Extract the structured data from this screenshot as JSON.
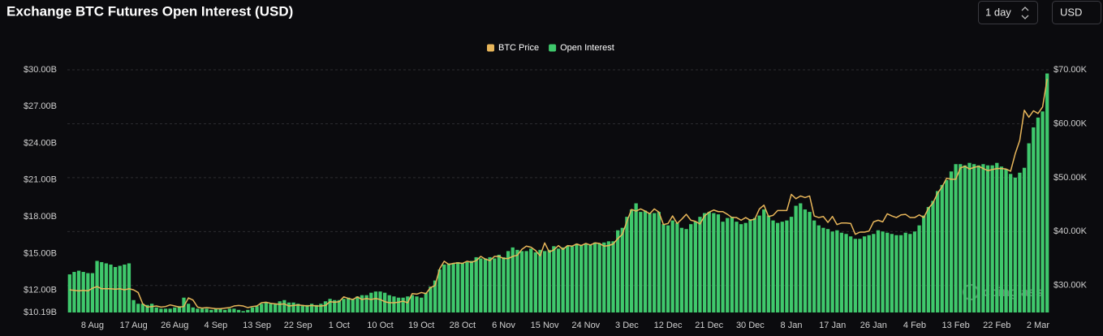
{
  "chart_data": {
    "type": "bar",
    "title": "Exchange BTC Futures Open Interest (USD)",
    "controls": {
      "interval": "1 day",
      "currency": "USD"
    },
    "watermark": "coinglass",
    "grid": true,
    "legend": "top",
    "categories": [
      null,
      null,
      null,
      null,
      null,
      "8 Aug",
      null,
      null,
      null,
      null,
      null,
      null,
      null,
      null,
      "17 Aug",
      null,
      null,
      null,
      null,
      null,
      null,
      null,
      null,
      "26 Aug",
      null,
      null,
      null,
      null,
      null,
      null,
      null,
      null,
      "4 Sep",
      null,
      null,
      null,
      null,
      null,
      null,
      null,
      null,
      "13 Sep",
      null,
      null,
      null,
      null,
      null,
      null,
      null,
      null,
      "22 Sep",
      null,
      null,
      null,
      null,
      null,
      null,
      null,
      null,
      "1 Oct",
      null,
      null,
      null,
      null,
      null,
      null,
      null,
      null,
      "10 Oct",
      null,
      null,
      null,
      null,
      null,
      null,
      null,
      null,
      "19 Oct",
      null,
      null,
      null,
      null,
      null,
      null,
      null,
      null,
      "28 Oct",
      null,
      null,
      null,
      null,
      null,
      null,
      null,
      null,
      "6 Nov",
      null,
      null,
      null,
      null,
      null,
      null,
      null,
      null,
      "15 Nov",
      null,
      null,
      null,
      null,
      null,
      null,
      null,
      null,
      "24 Nov",
      null,
      null,
      null,
      null,
      null,
      null,
      null,
      null,
      "3 Dec",
      null,
      null,
      null,
      null,
      null,
      null,
      null,
      null,
      "12 Dec",
      null,
      null,
      null,
      null,
      null,
      null,
      null,
      null,
      "21 Dec",
      null,
      null,
      null,
      null,
      null,
      null,
      null,
      null,
      "30 Dec",
      null,
      null,
      null,
      null,
      null,
      null,
      null,
      null,
      "8 Jan",
      null,
      null,
      null,
      null,
      null,
      null,
      null,
      null,
      "17 Jan",
      null,
      null,
      null,
      null,
      null,
      null,
      null,
      null,
      "26 Jan",
      null,
      null,
      null,
      null,
      null,
      null,
      null,
      null,
      "4 Feb",
      null,
      null,
      null,
      null,
      null,
      null,
      null,
      null,
      "13 Feb",
      null,
      null,
      null,
      null,
      null,
      null,
      null,
      null,
      "22 Feb",
      null,
      null,
      null,
      null,
      null,
      null,
      null,
      null,
      "2 Mar",
      null,
      null
    ],
    "series": [
      {
        "name": "BTC Price",
        "color": "#e8b65a",
        "type": "line",
        "axis": "y2",
        "values": [
          29.2,
          29.1,
          29.0,
          29.1,
          29.0,
          29.5,
          29.8,
          29.4,
          29.4,
          29.4,
          29.3,
          29.4,
          29.2,
          29.4,
          29.2,
          28.7,
          26.6,
          26.0,
          26.1,
          26.2,
          26.0,
          26.1,
          26.4,
          26.2,
          26.0,
          26.1,
          27.7,
          27.3,
          26.0,
          25.8,
          25.9,
          25.8,
          25.7,
          25.7,
          25.8,
          25.9,
          26.2,
          26.3,
          26.2,
          25.9,
          26.1,
          26.2,
          26.8,
          26.9,
          26.7,
          26.6,
          26.5,
          26.6,
          26.2,
          26.3,
          26.4,
          26.3,
          26.2,
          26.3,
          26.2,
          26.2,
          26.3,
          27.0,
          26.9,
          27.0,
          27.9,
          27.6,
          27.4,
          27.9,
          27.4,
          27.6,
          27.4,
          27.6,
          27.4,
          27.0,
          26.8,
          26.8,
          26.9,
          27.1,
          26.8,
          28.5,
          28.4,
          28.7,
          28.5,
          29.6,
          30.0,
          33.1,
          34.5,
          33.9,
          34.1,
          34.2,
          34.1,
          34.5,
          34.3,
          34.6,
          35.4,
          34.9,
          34.6,
          35.4,
          35.4,
          35.0,
          35.0,
          35.4,
          35.6,
          36.7,
          37.3,
          37.1,
          36.5,
          35.5,
          37.9,
          36.2,
          36.6,
          37.4,
          36.7,
          37.4,
          37.3,
          37.7,
          37.4,
          37.8,
          37.5,
          37.9,
          37.8,
          37.3,
          37.4,
          37.7,
          38.7,
          39.5,
          41.9,
          44.1,
          43.8,
          44.2,
          43.8,
          43.3,
          44.2,
          43.6,
          41.3,
          41.5,
          42.9,
          41.5,
          42.3,
          43.2,
          42.1,
          41.9,
          41.4,
          42.9,
          43.6,
          44.0,
          43.7,
          43.7,
          43.2,
          42.6,
          42.6,
          42.1,
          42.6,
          42.1,
          42.3,
          44.2,
          44.9,
          42.8,
          43.0,
          43.9,
          43.9,
          43.9,
          46.9,
          46.1,
          46.6,
          46.3,
          46.6,
          42.9,
          42.6,
          42.8,
          41.7,
          42.8,
          41.3,
          41.6,
          41.6,
          41.5,
          39.5,
          39.9,
          39.9,
          40.1,
          41.8,
          42.1,
          41.8,
          43.3,
          42.9,
          42.6,
          43.1,
          43.2,
          42.6,
          42.6,
          43.1,
          42.6,
          44.3,
          45.3,
          47.1,
          48.3,
          49.9,
          49.7,
          49.7,
          51.8,
          52.1,
          51.6,
          51.9,
          52.1,
          51.7,
          51.3,
          51.5,
          51.7,
          51.7,
          51.6,
          51.2,
          54.4,
          56.9,
          62.5,
          61.2,
          62.4,
          61.9,
          63.1,
          68.3
        ]
      },
      {
        "name": "Open Interest",
        "color": "#3fc86c",
        "type": "bar",
        "values": [
          13.3,
          13.5,
          13.6,
          13.5,
          13.4,
          13.4,
          14.4,
          14.3,
          14.2,
          14.1,
          13.9,
          14.0,
          14.1,
          14.2,
          11.2,
          10.9,
          10.9,
          10.8,
          10.9,
          10.6,
          10.5,
          10.5,
          10.5,
          10.6,
          10.7,
          11.4,
          10.9,
          10.6,
          10.5,
          10.5,
          10.5,
          10.4,
          10.5,
          10.5,
          10.4,
          10.5,
          10.5,
          10.4,
          10.3,
          10.4,
          10.6,
          10.7,
          10.9,
          11.0,
          10.9,
          10.9,
          11.1,
          11.2,
          11.0,
          11.0,
          10.9,
          10.8,
          10.8,
          10.9,
          10.8,
          10.9,
          11.1,
          11.3,
          11.2,
          11.2,
          11.3,
          11.4,
          11.3,
          11.5,
          11.6,
          11.6,
          11.8,
          11.9,
          11.9,
          11.8,
          11.6,
          11.5,
          11.4,
          11.4,
          11.5,
          11.6,
          11.5,
          11.4,
          11.8,
          12.3,
          12.8,
          13.7,
          14.1,
          14.2,
          14.2,
          14.3,
          14.2,
          14.3,
          14.4,
          14.7,
          14.6,
          14.6,
          14.7,
          14.6,
          14.9,
          14.7,
          15.2,
          15.5,
          15.3,
          15.2,
          15.2,
          15.4,
          15.1,
          15.3,
          15.2,
          15.3,
          15.6,
          15.4,
          15.5,
          15.6,
          15.6,
          15.8,
          15.7,
          15.8,
          15.7,
          15.9,
          15.8,
          15.9,
          16.0,
          16.0,
          16.9,
          17.1,
          18.0,
          18.6,
          19.1,
          18.4,
          18.5,
          18.3,
          18.3,
          18.4,
          17.4,
          17.3,
          17.7,
          17.5,
          17.1,
          17.0,
          17.4,
          17.6,
          18.0,
          18.3,
          18.4,
          18.3,
          18.2,
          17.6,
          17.9,
          18.0,
          17.6,
          17.4,
          17.5,
          17.8,
          17.9,
          18.1,
          18.6,
          18.1,
          17.7,
          17.5,
          17.6,
          17.7,
          18.0,
          18.9,
          19.1,
          18.6,
          18.4,
          17.7,
          17.3,
          17.1,
          17.0,
          16.8,
          16.9,
          16.7,
          16.6,
          16.4,
          16.2,
          16.2,
          16.4,
          16.5,
          16.6,
          16.9,
          16.8,
          16.7,
          16.6,
          16.5,
          16.5,
          16.7,
          16.6,
          16.8,
          17.3,
          18.1,
          18.8,
          19.3,
          20.1,
          20.6,
          21.0,
          21.7,
          22.3,
          22.3,
          22.2,
          22.4,
          22.3,
          22.2,
          22.3,
          22.2,
          22.2,
          22.4,
          22.1,
          21.9,
          21.5,
          21.2,
          21.6,
          22.0,
          24.0,
          25.3,
          26.1,
          26.6,
          29.7
        ]
      }
    ],
    "ylim": [
      10.19,
      30
    ],
    "yticks": [
      {
        "value": 10.19,
        "label": "$10.19B"
      },
      {
        "value": 12,
        "label": "$12.00B"
      },
      {
        "value": 15,
        "label": "$15.00B"
      },
      {
        "value": 18,
        "label": "$18.00B"
      },
      {
        "value": 21,
        "label": "$21.00B"
      },
      {
        "value": 24,
        "label": "$24.00B"
      },
      {
        "value": 27,
        "label": "$27.00B"
      },
      {
        "value": 30,
        "label": "$30.00B"
      }
    ],
    "y2lim": [
      25,
      70
    ],
    "y2ticks": [
      {
        "value": 30,
        "label": "$30.00K"
      },
      {
        "value": 40,
        "label": "$40.00K"
      },
      {
        "value": 50,
        "label": "$50.00K"
      },
      {
        "value": 60,
        "label": "$60.00K"
      },
      {
        "value": 70,
        "label": "$70.00K"
      }
    ]
  }
}
